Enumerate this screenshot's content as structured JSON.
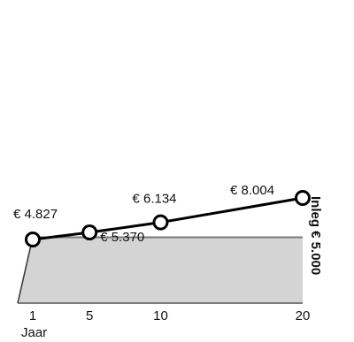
{
  "chart_data": {
    "type": "line",
    "x": [
      1,
      5,
      10,
      20
    ],
    "values": [
      4827,
      5370,
      6134,
      8004
    ],
    "value_labels": [
      "€ 4.827",
      "€ 5.370",
      "€ 6.134",
      "€ 8.004"
    ],
    "tick_labels": [
      "1",
      "5",
      "10",
      "20"
    ],
    "xlabel": "Jaar",
    "baseline": {
      "label": "Inleg € 5.000",
      "value": 5000
    },
    "colors": {
      "line": "#000000",
      "area": "#d4d4d4",
      "area_edge": "#7a7a7a",
      "marker_fill": "#ffffff"
    },
    "grid": false
  }
}
